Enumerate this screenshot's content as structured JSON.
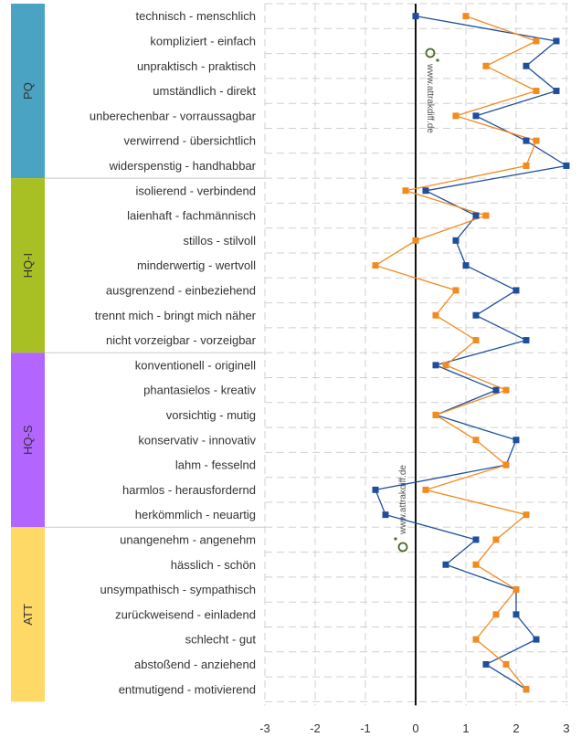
{
  "chart_data": {
    "type": "line",
    "xlim": [
      -3,
      3
    ],
    "x_ticks": [
      "-3",
      "-2",
      "-1",
      "0",
      "1",
      "2",
      "3"
    ],
    "watermark": "www.attrakdiff.de",
    "groups": [
      {
        "label": "PQ",
        "color": "#4ba3c3",
        "rows": 7
      },
      {
        "label": "HQ-I",
        "color": "#a8c023",
        "rows": 7
      },
      {
        "label": "HQ-S",
        "color": "#b366ff",
        "rows": 7
      },
      {
        "label": "ATT",
        "color": "#ffd966",
        "rows": 7
      }
    ],
    "categories": [
      "technisch - menschlich",
      "kompliziert - einfach",
      "unpraktisch - praktisch",
      "umständlich - direkt",
      "unberechenbar - vorraussagbar",
      "verwirrend - übersichtlich",
      "widerspenstig - handhabbar",
      "isolierend - verbindend",
      "laienhaft - fachmännisch",
      "stillos - stilvoll",
      "minderwertig - wertvoll",
      "ausgrenzend - einbeziehend",
      "trennt mich - bringt mich näher",
      "nicht vorzeigbar - vorzeigbar",
      "konventionell - originell",
      "phantasielos - kreativ",
      "vorsichtig - mutig",
      "konservativ - innovativ",
      "lahm - fesselnd",
      "harmlos - herausfordernd",
      "herkömmlich - neuartig",
      "unangenehm - angenehm",
      "hässlich - schön",
      "unsympathisch - sympathisch",
      "zurückweisend - einladend",
      "schlecht - gut",
      "abstoßend - anziehend",
      "entmutigend - motivierend"
    ],
    "series": [
      {
        "color": "#1f4e9c",
        "values": [
          0.0,
          2.8,
          2.2,
          2.8,
          1.2,
          2.2,
          3.0,
          0.2,
          1.2,
          0.8,
          1.0,
          2.0,
          1.2,
          2.2,
          0.4,
          1.6,
          0.4,
          2.0,
          1.8,
          -0.8,
          -0.6,
          1.2,
          0.6,
          2.0,
          2.0,
          2.4,
          1.4,
          2.2
        ]
      },
      {
        "color": "#f28a1e",
        "values": [
          1.0,
          2.4,
          1.4,
          2.4,
          0.8,
          2.4,
          2.2,
          -0.2,
          1.4,
          0.0,
          -0.8,
          0.8,
          0.4,
          1.2,
          0.6,
          1.8,
          0.4,
          1.2,
          1.8,
          0.2,
          2.2,
          1.6,
          1.2,
          2.0,
          1.6,
          1.2,
          1.8,
          2.2
        ]
      }
    ]
  }
}
